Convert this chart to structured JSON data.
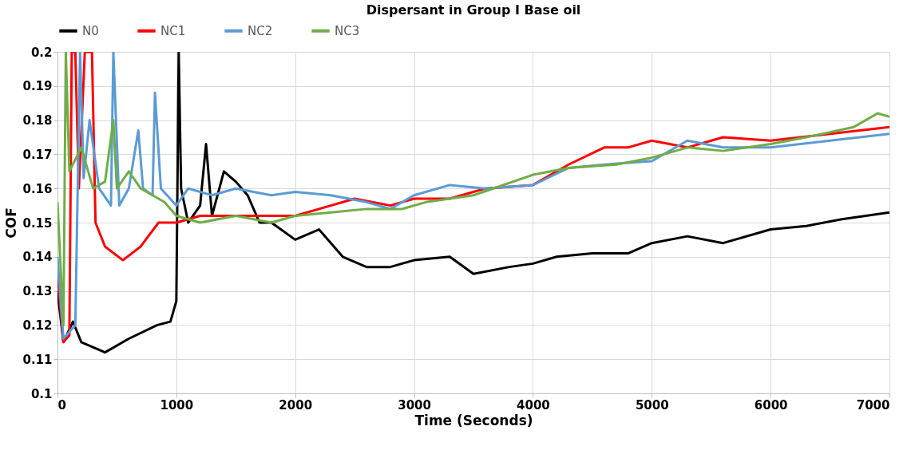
{
  "chart_data": {
    "type": "line",
    "title": "Dispersant in Group I Base oil",
    "xlabel": "Time (Seconds)",
    "ylabel": "COF",
    "xlim": [
      0,
      7000
    ],
    "xticks": [
      0,
      1000,
      2000,
      3000,
      4000,
      5000,
      6000,
      7000
    ],
    "ylim": [
      0.1,
      0.2
    ],
    "yticks": [
      0.1,
      0.11,
      0.12,
      0.13,
      0.14,
      0.15,
      0.16,
      0.17,
      0.18,
      0.19,
      0.2
    ],
    "grid": true,
    "legend": "top",
    "marker": "none",
    "line_style": "solid",
    "series": [
      {
        "name": "N0",
        "color": "#000000",
        "x": [
          0,
          50,
          130,
          200,
          400,
          600,
          840,
          950,
          1000,
          1020,
          1040,
          1100,
          1200,
          1250,
          1300,
          1400,
          1500,
          1600,
          1700,
          1800,
          2000,
          2200,
          2400,
          2600,
          2800,
          3000,
          3300,
          3500,
          3800,
          4000,
          4200,
          4500,
          4800,
          5000,
          5300,
          5600,
          6000,
          6300,
          6600,
          7000
        ],
        "values": [
          0.13,
          0.115,
          0.121,
          0.115,
          0.112,
          0.116,
          0.12,
          0.121,
          0.127,
          0.2,
          0.16,
          0.15,
          0.155,
          0.173,
          0.152,
          0.165,
          0.162,
          0.158,
          0.15,
          0.15,
          0.145,
          0.148,
          0.14,
          0.137,
          0.137,
          0.139,
          0.14,
          0.135,
          0.137,
          0.138,
          0.14,
          0.141,
          0.141,
          0.144,
          0.146,
          0.144,
          0.148,
          0.149,
          0.151,
          0.153
        ]
      },
      {
        "name": "NC1",
        "color": "#ff0000",
        "x": [
          0,
          50,
          100,
          120,
          150,
          180,
          230,
          290,
          320,
          400,
          550,
          700,
          850,
          1000,
          1200,
          1500,
          1800,
          2000,
          2300,
          2500,
          2800,
          3000,
          3300,
          3600,
          4000,
          4300,
          4600,
          4800,
          5000,
          5300,
          5600,
          6000,
          6500,
          7000
        ],
        "values": [
          0.135,
          0.115,
          0.117,
          0.2,
          0.2,
          0.16,
          0.2,
          0.2,
          0.15,
          0.143,
          0.139,
          0.143,
          0.15,
          0.15,
          0.152,
          0.152,
          0.152,
          0.152,
          0.155,
          0.157,
          0.155,
          0.157,
          0.157,
          0.16,
          0.161,
          0.167,
          0.172,
          0.172,
          0.174,
          0.172,
          0.175,
          0.174,
          0.176,
          0.178
        ]
      },
      {
        "name": "NC2",
        "color": "#5b9bd5",
        "x": [
          0,
          50,
          150,
          190,
          220,
          270,
          350,
          450,
          470,
          520,
          600,
          680,
          720,
          800,
          820,
          870,
          1000,
          1100,
          1300,
          1500,
          1800,
          2000,
          2300,
          2600,
          2800,
          3000,
          3300,
          3600,
          4000,
          4300,
          4600,
          5000,
          5300,
          5600,
          6000,
          6500,
          7000
        ],
        "values": [
          0.14,
          0.116,
          0.12,
          0.2,
          0.163,
          0.18,
          0.16,
          0.155,
          0.2,
          0.155,
          0.16,
          0.177,
          0.16,
          0.158,
          0.188,
          0.16,
          0.155,
          0.16,
          0.158,
          0.16,
          0.158,
          0.159,
          0.158,
          0.156,
          0.154,
          0.158,
          0.161,
          0.16,
          0.161,
          0.166,
          0.167,
          0.168,
          0.174,
          0.172,
          0.172,
          0.174,
          0.176
        ]
      },
      {
        "name": "NC3",
        "color": "#70ad47",
        "x": [
          0,
          50,
          70,
          100,
          200,
          300,
          400,
          470,
          500,
          600,
          700,
          900,
          1000,
          1200,
          1500,
          1800,
          2000,
          2300,
          2600,
          2900,
          3100,
          3500,
          4000,
          4300,
          4700,
          5000,
          5300,
          5600,
          6000,
          6300,
          6700,
          6900,
          7000
        ],
        "values": [
          0.156,
          0.12,
          0.2,
          0.165,
          0.172,
          0.16,
          0.162,
          0.18,
          0.16,
          0.165,
          0.16,
          0.156,
          0.152,
          0.15,
          0.152,
          0.15,
          0.152,
          0.153,
          0.154,
          0.154,
          0.156,
          0.158,
          0.164,
          0.166,
          0.167,
          0.169,
          0.172,
          0.171,
          0.173,
          0.175,
          0.178,
          0.182,
          0.181
        ]
      }
    ]
  }
}
